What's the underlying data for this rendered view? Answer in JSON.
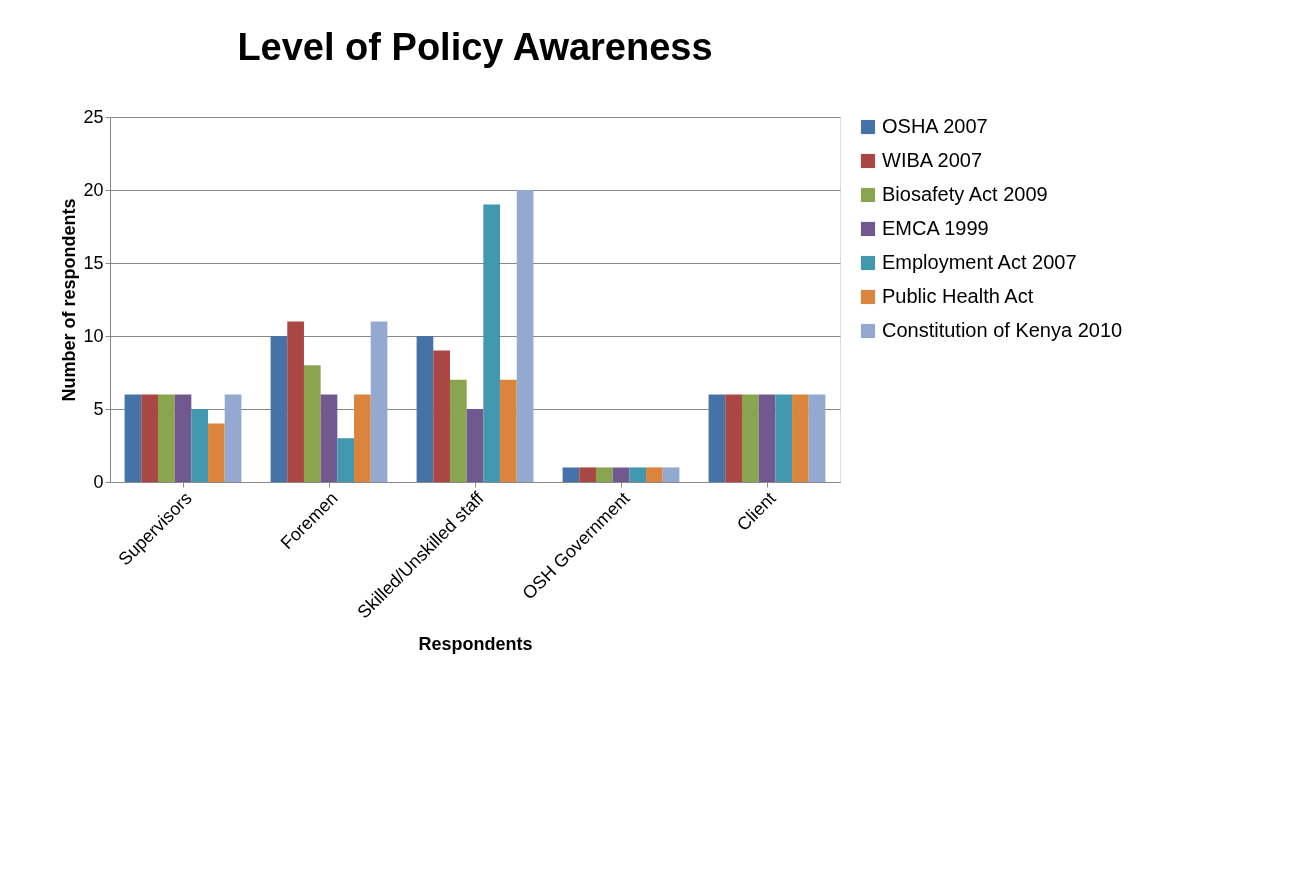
{
  "chart_data": {
    "type": "bar",
    "title": "Level of Policy Awareness",
    "xlabel": "Respondents",
    "ylabel": "Number of respondents",
    "categories": [
      "Supervisors",
      "Foremen",
      "Skilled/Unskilled staff",
      "OSH Government",
      "Client"
    ],
    "series": [
      {
        "name": "OSHA 2007",
        "color": "#4572a7",
        "values": [
          6,
          10,
          10,
          1,
          6
        ]
      },
      {
        "name": "WIBA 2007",
        "color": "#aa4643",
        "values": [
          6,
          11,
          9,
          1,
          6
        ]
      },
      {
        "name": "Biosafety Act 2009",
        "color": "#89a54e",
        "values": [
          6,
          8,
          7,
          1,
          6
        ]
      },
      {
        "name": "EMCA 1999",
        "color": "#71588f",
        "values": [
          6,
          6,
          5,
          1,
          6
        ]
      },
      {
        "name": "Employment Act 2007",
        "color": "#4198af",
        "values": [
          5,
          3,
          19,
          1,
          6
        ]
      },
      {
        "name": "Public Health Act",
        "color": "#db843d",
        "values": [
          4,
          6,
          7,
          1,
          6
        ]
      },
      {
        "name": "Constitution of Kenya 2010",
        "color": "#93a9cf",
        "values": [
          6,
          11,
          20,
          1,
          6
        ]
      }
    ],
    "ylim": [
      0,
      25
    ],
    "yticks": [
      0,
      5,
      10,
      15,
      20,
      25
    ],
    "grid": "y",
    "legend": "right"
  }
}
